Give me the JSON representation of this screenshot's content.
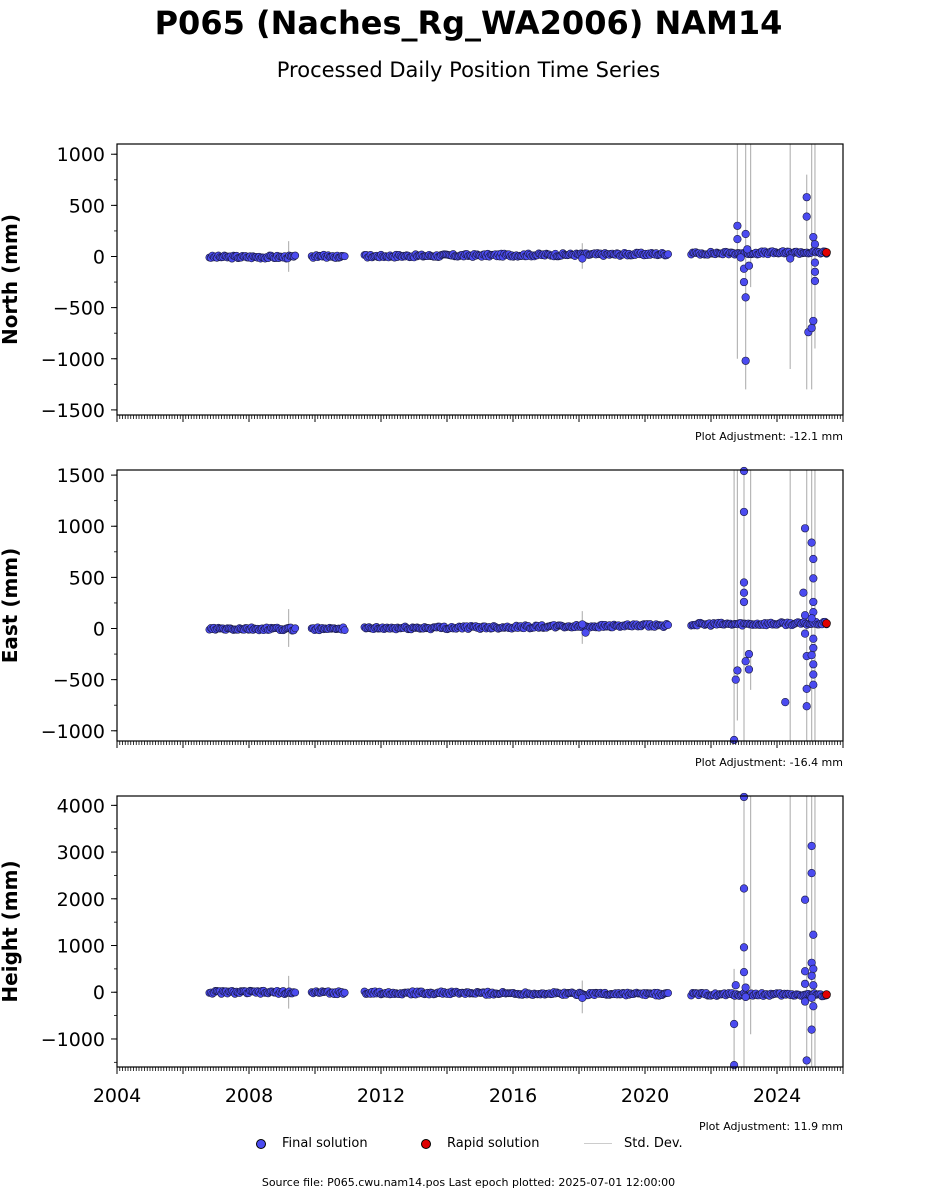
{
  "header": {
    "title": "P065 (Naches_Rg_WA2006) NAM14",
    "subtitle": "Processed Daily Position Time Series"
  },
  "legend": {
    "final": "Final solution",
    "rapid": "Rapid solution",
    "std": "Std. Dev."
  },
  "footer": {
    "source": "Source file: P065.cwu.nam14.pos  Last epoch plotted: 2025-07-01 12:00:00"
  },
  "colors": {
    "final": "#4b4bf0",
    "rapid": "#e00000",
    "std": "#aaaaaa"
  },
  "chart_data": [
    {
      "type": "scatter",
      "ylabel": "North (mm)",
      "adjustment": "Plot Adjustment: -12.1 mm",
      "xlim": [
        2004,
        2026
      ],
      "ylim": [
        -1550,
        1100
      ],
      "yticks": [
        1000,
        500,
        0,
        -500,
        -1000,
        -1500
      ],
      "ytick_labels": [
        "1000",
        "500",
        "0",
        "−500",
        "−1000",
        "−1500"
      ],
      "segments": [
        {
          "x0": 2006.8,
          "x1": 2009.4,
          "y0": -5,
          "y1": -5
        },
        {
          "x0": 2009.9,
          "x1": 2010.9,
          "y0": 0,
          "y1": 2
        },
        {
          "x0": 2011.5,
          "x1": 2020.7,
          "y0": 2,
          "y1": 25
        },
        {
          "x0": 2021.4,
          "x1": 2025.5,
          "y0": 30,
          "y1": 40
        }
      ],
      "outliers": [
        {
          "x": 2018.1,
          "y": -20
        },
        {
          "x": 2022.8,
          "y": 300
        },
        {
          "x": 2022.8,
          "y": 170
        },
        {
          "x": 2022.9,
          "y": -10
        },
        {
          "x": 2023.0,
          "y": -120
        },
        {
          "x": 2023.0,
          "y": -250
        },
        {
          "x": 2023.05,
          "y": -400
        },
        {
          "x": 2023.05,
          "y": -1020
        },
        {
          "x": 2023.05,
          "y": 220
        },
        {
          "x": 2023.15,
          "y": -90
        },
        {
          "x": 2023.1,
          "y": 70
        },
        {
          "x": 2024.4,
          "y": -20
        },
        {
          "x": 2024.9,
          "y": 580
        },
        {
          "x": 2024.9,
          "y": 390
        },
        {
          "x": 2024.95,
          "y": -740
        },
        {
          "x": 2025.05,
          "y": -700
        },
        {
          "x": 2025.1,
          "y": -630
        },
        {
          "x": 2025.1,
          "y": 190
        },
        {
          "x": 2025.15,
          "y": 120
        },
        {
          "x": 2025.15,
          "y": -60
        },
        {
          "x": 2025.15,
          "y": -150
        },
        {
          "x": 2025.15,
          "y": -240
        }
      ],
      "rapid": [
        {
          "x": 2025.5,
          "y": 40
        }
      ],
      "std_lines": [
        {
          "x": 2009.2,
          "y0": -150,
          "y1": 150
        },
        {
          "x": 2018.1,
          "y0": -120,
          "y1": 130
        },
        {
          "x": 2022.8,
          "y0": -1000,
          "y1": 1100
        },
        {
          "x": 2023.05,
          "y0": -1300,
          "y1": 1100
        },
        {
          "x": 2023.2,
          "y0": -300,
          "y1": 1100
        },
        {
          "x": 2024.4,
          "y0": -1100,
          "y1": 1100
        },
        {
          "x": 2024.9,
          "y0": -1300,
          "y1": 800
        },
        {
          "x": 2025.05,
          "y0": -1300,
          "y1": 1100
        },
        {
          "x": 2025.15,
          "y0": -900,
          "y1": 1100
        }
      ]
    },
    {
      "type": "scatter",
      "ylabel": "East (mm)",
      "adjustment": "Plot Adjustment: -16.4 mm",
      "xlim": [
        2004,
        2026
      ],
      "ylim": [
        -1100,
        1550
      ],
      "yticks": [
        1500,
        1000,
        500,
        0,
        -500,
        -1000
      ],
      "ytick_labels": [
        "1500",
        "1000",
        "500",
        "0",
        "−500",
        "−1000"
      ],
      "segments": [
        {
          "x0": 2006.8,
          "x1": 2009.4,
          "y0": -5,
          "y1": -5
        },
        {
          "x0": 2009.9,
          "x1": 2010.9,
          "y0": -2,
          "y1": 0
        },
        {
          "x0": 2011.5,
          "x1": 2020.7,
          "y0": 0,
          "y1": 30
        },
        {
          "x0": 2021.4,
          "x1": 2025.5,
          "y0": 40,
          "y1": 50
        }
      ],
      "outliers": [
        {
          "x": 2018.1,
          "y": 40
        },
        {
          "x": 2018.2,
          "y": -40
        },
        {
          "x": 2022.7,
          "y": -1090
        },
        {
          "x": 2022.8,
          "y": -410
        },
        {
          "x": 2022.75,
          "y": -500
        },
        {
          "x": 2023.0,
          "y": 1140
        },
        {
          "x": 2023.0,
          "y": 1540
        },
        {
          "x": 2023.0,
          "y": 450
        },
        {
          "x": 2023.0,
          "y": 350
        },
        {
          "x": 2023.0,
          "y": 260
        },
        {
          "x": 2023.05,
          "y": -320
        },
        {
          "x": 2023.15,
          "y": -250
        },
        {
          "x": 2023.15,
          "y": -400
        },
        {
          "x": 2024.25,
          "y": -720
        },
        {
          "x": 2024.8,
          "y": 350
        },
        {
          "x": 2024.85,
          "y": 980
        },
        {
          "x": 2024.85,
          "y": 130
        },
        {
          "x": 2024.85,
          "y": -50
        },
        {
          "x": 2024.9,
          "y": -270
        },
        {
          "x": 2024.9,
          "y": -590
        },
        {
          "x": 2024.9,
          "y": -760
        },
        {
          "x": 2025.05,
          "y": 840
        },
        {
          "x": 2025.1,
          "y": 680
        },
        {
          "x": 2025.1,
          "y": 490
        },
        {
          "x": 2025.1,
          "y": 260
        },
        {
          "x": 2025.1,
          "y": 160
        },
        {
          "x": 2025.05,
          "y": 100
        },
        {
          "x": 2025.1,
          "y": -100
        },
        {
          "x": 2025.1,
          "y": -190
        },
        {
          "x": 2025.1,
          "y": -350
        },
        {
          "x": 2025.1,
          "y": -450
        },
        {
          "x": 2025.1,
          "y": -550
        },
        {
          "x": 2025.05,
          "y": -260
        }
      ],
      "rapid": [
        {
          "x": 2025.5,
          "y": 50
        }
      ],
      "std_lines": [
        {
          "x": 2009.2,
          "y0": -180,
          "y1": 190
        },
        {
          "x": 2018.1,
          "y0": -150,
          "y1": 170
        },
        {
          "x": 2022.7,
          "y0": -1100,
          "y1": 1550
        },
        {
          "x": 2022.8,
          "y0": -900,
          "y1": 1550
        },
        {
          "x": 2023.0,
          "y0": -1100,
          "y1": 1550
        },
        {
          "x": 2023.2,
          "y0": -600,
          "y1": 1550
        },
        {
          "x": 2024.4,
          "y0": -1100,
          "y1": 1550
        },
        {
          "x": 2024.9,
          "y0": -1100,
          "y1": 1550
        },
        {
          "x": 2025.05,
          "y0": -1100,
          "y1": 1550
        },
        {
          "x": 2025.15,
          "y0": -1100,
          "y1": 1550
        }
      ]
    },
    {
      "type": "scatter",
      "ylabel": "Height (mm)",
      "adjustment": "Plot Adjustment: 11.9 mm",
      "xlim": [
        2004,
        2026
      ],
      "ylim": [
        -1600,
        4200
      ],
      "yticks": [
        4000,
        3000,
        2000,
        1000,
        0,
        -1000
      ],
      "ytick_labels": [
        "4000",
        "3000",
        "2000",
        "1000",
        "0",
        "−1000"
      ],
      "xticks": [
        2004,
        2008,
        2012,
        2016,
        2020,
        2024
      ],
      "xtick_labels": [
        "2004",
        "2008",
        "2012",
        "2016",
        "2020",
        "2024"
      ],
      "segments": [
        {
          "x0": 2006.8,
          "x1": 2009.4,
          "y0": 0,
          "y1": -5
        },
        {
          "x0": 2009.9,
          "x1": 2010.9,
          "y0": -5,
          "y1": -10
        },
        {
          "x0": 2011.5,
          "x1": 2020.7,
          "y0": -10,
          "y1": -40
        },
        {
          "x0": 2021.4,
          "x1": 2025.5,
          "y0": -45,
          "y1": -55
        }
      ],
      "outliers": [
        {
          "x": 2018.1,
          "y": -120
        },
        {
          "x": 2022.7,
          "y": -680
        },
        {
          "x": 2022.7,
          "y": -1560
        },
        {
          "x": 2022.75,
          "y": 150
        },
        {
          "x": 2023.0,
          "y": 4180
        },
        {
          "x": 2023.0,
          "y": 2220
        },
        {
          "x": 2023.0,
          "y": 960
        },
        {
          "x": 2023.0,
          "y": 430
        },
        {
          "x": 2023.05,
          "y": 100
        },
        {
          "x": 2023.05,
          "y": -100
        },
        {
          "x": 2024.85,
          "y": 1980
        },
        {
          "x": 2024.85,
          "y": 450
        },
        {
          "x": 2024.85,
          "y": 180
        },
        {
          "x": 2024.85,
          "y": -200
        },
        {
          "x": 2024.9,
          "y": -1460
        },
        {
          "x": 2025.05,
          "y": 3130
        },
        {
          "x": 2025.05,
          "y": 2550
        },
        {
          "x": 2025.1,
          "y": 1230
        },
        {
          "x": 2025.05,
          "y": 630
        },
        {
          "x": 2025.1,
          "y": 500
        },
        {
          "x": 2025.05,
          "y": 350
        },
        {
          "x": 2025.1,
          "y": 150
        },
        {
          "x": 2025.05,
          "y": -120
        },
        {
          "x": 2025.1,
          "y": -300
        },
        {
          "x": 2025.05,
          "y": -800
        }
      ],
      "rapid": [
        {
          "x": 2025.5,
          "y": -50
        }
      ],
      "std_lines": [
        {
          "x": 2009.2,
          "y0": -350,
          "y1": 350
        },
        {
          "x": 2018.1,
          "y0": -450,
          "y1": 250
        },
        {
          "x": 2022.7,
          "y0": -1600,
          "y1": 500
        },
        {
          "x": 2023.0,
          "y0": -1600,
          "y1": 4200
        },
        {
          "x": 2023.2,
          "y0": -900,
          "y1": 4200
        },
        {
          "x": 2024.4,
          "y0": -1600,
          "y1": 4200
        },
        {
          "x": 2024.9,
          "y0": -1600,
          "y1": 4200
        },
        {
          "x": 2025.05,
          "y0": -1600,
          "y1": 4200
        },
        {
          "x": 2025.15,
          "y0": -1600,
          "y1": 4200
        }
      ]
    }
  ]
}
